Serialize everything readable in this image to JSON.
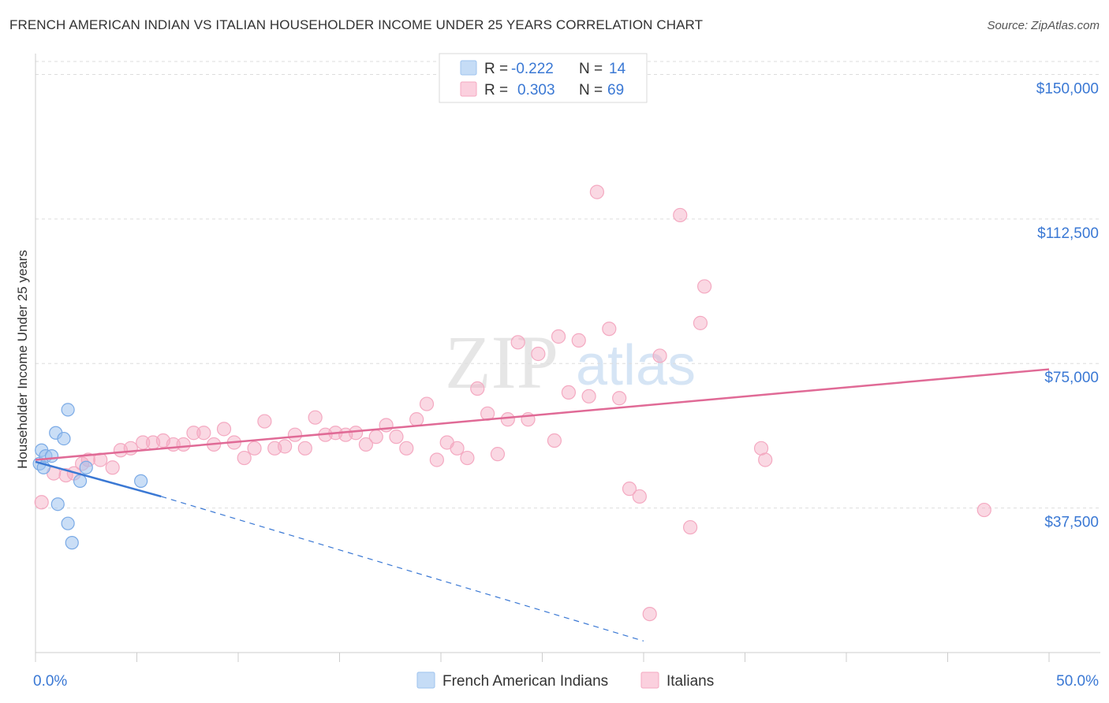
{
  "title": "FRENCH AMERICAN INDIAN VS ITALIAN HOUSEHOLDER INCOME UNDER 25 YEARS CORRELATION CHART",
  "source": "Source: ZipAtlas.com",
  "watermark": {
    "zip": "ZIP",
    "atlas": "atlas"
  },
  "legend_top": {
    "rows": [
      {
        "r_label": "R =",
        "r_value": "-0.222",
        "n_label": "N =",
        "n_value": "14",
        "color": "#9ec3ef"
      },
      {
        "r_label": "R =",
        "r_value": "0.303",
        "n_label": "N =",
        "n_value": "69",
        "color": "#f4a9c1"
      }
    ]
  },
  "chart_data": {
    "type": "scatter",
    "title": "FRENCH AMERICAN INDIAN VS ITALIAN HOUSEHOLDER INCOME UNDER 25 YEARS CORRELATION CHART",
    "xlabel": "",
    "ylabel": "Householder Income Under 25 years",
    "xlim": [
      0,
      50
    ],
    "ylim": [
      0,
      155000
    ],
    "x_tick_labels": [
      "0.0%",
      "50.0%"
    ],
    "y_ticks": [
      37500,
      75000,
      112500,
      150000
    ],
    "y_tick_labels": [
      "$37,500",
      "$75,000",
      "$112,500",
      "$150,000"
    ],
    "grid": true,
    "legend_position": "bottom",
    "series": [
      {
        "name": "French American Indians",
        "color": "#9ec3ef",
        "line_color": "#3a78d4",
        "trend": {
          "start": [
            0,
            49500
          ],
          "end_solid": [
            6.2,
            40500
          ],
          "end_dashed": [
            30,
            3000
          ]
        },
        "points": [
          [
            0.2,
            49000
          ],
          [
            0.3,
            52500
          ],
          [
            0.4,
            48000
          ],
          [
            0.5,
            51000
          ],
          [
            0.8,
            51000
          ],
          [
            1.0,
            57000
          ],
          [
            1.1,
            38500
          ],
          [
            1.4,
            55500
          ],
          [
            1.6,
            63000
          ],
          [
            1.6,
            33500
          ],
          [
            1.8,
            28500
          ],
          [
            2.2,
            44500
          ],
          [
            2.5,
            48000
          ],
          [
            5.2,
            44500
          ]
        ]
      },
      {
        "name": "Italians",
        "color": "#f4a9c1",
        "line_color": "#e06a96",
        "trend": {
          "start": [
            0,
            50000
          ],
          "end": [
            50,
            73500
          ]
        },
        "points": [
          [
            0.3,
            39000
          ],
          [
            0.9,
            46500
          ],
          [
            1.5,
            46000
          ],
          [
            1.9,
            46500
          ],
          [
            2.3,
            49000
          ],
          [
            2.6,
            50000
          ],
          [
            3.2,
            50000
          ],
          [
            3.8,
            48000
          ],
          [
            4.2,
            52500
          ],
          [
            4.7,
            53000
          ],
          [
            5.3,
            54500
          ],
          [
            5.8,
            54500
          ],
          [
            6.3,
            55000
          ],
          [
            6.8,
            54000
          ],
          [
            7.3,
            54000
          ],
          [
            7.8,
            57000
          ],
          [
            8.3,
            57000
          ],
          [
            8.8,
            54000
          ],
          [
            9.3,
            58000
          ],
          [
            9.8,
            54500
          ],
          [
            10.3,
            50500
          ],
          [
            10.8,
            53000
          ],
          [
            11.3,
            60000
          ],
          [
            11.8,
            53000
          ],
          [
            12.3,
            53500
          ],
          [
            12.8,
            56500
          ],
          [
            13.3,
            53000
          ],
          [
            13.8,
            61000
          ],
          [
            14.3,
            56500
          ],
          [
            14.8,
            57000
          ],
          [
            15.3,
            56500
          ],
          [
            15.8,
            57000
          ],
          [
            16.3,
            54000
          ],
          [
            16.8,
            56000
          ],
          [
            17.3,
            59000
          ],
          [
            17.8,
            56000
          ],
          [
            18.3,
            53000
          ],
          [
            18.8,
            60500
          ],
          [
            19.3,
            64500
          ],
          [
            19.8,
            50000
          ],
          [
            20.3,
            54500
          ],
          [
            20.8,
            53000
          ],
          [
            21.3,
            50500
          ],
          [
            21.8,
            68500
          ],
          [
            22.3,
            62000
          ],
          [
            22.8,
            51500
          ],
          [
            23.3,
            60500
          ],
          [
            23.8,
            80500
          ],
          [
            24.3,
            60500
          ],
          [
            24.8,
            77500
          ],
          [
            25.6,
            55000
          ],
          [
            25.8,
            82000
          ],
          [
            26.3,
            67500
          ],
          [
            26.8,
            81000
          ],
          [
            27.3,
            66500
          ],
          [
            27.7,
            119500
          ],
          [
            28.3,
            84000
          ],
          [
            28.8,
            66000
          ],
          [
            29.3,
            42500
          ],
          [
            29.8,
            40500
          ],
          [
            30.3,
            10000
          ],
          [
            30.8,
            77000
          ],
          [
            31.8,
            113500
          ],
          [
            32.3,
            32500
          ],
          [
            32.8,
            85500
          ],
          [
            33.0,
            95000
          ],
          [
            35.8,
            53000
          ],
          [
            36.0,
            50000
          ],
          [
            46.8,
            37000
          ]
        ]
      }
    ]
  }
}
